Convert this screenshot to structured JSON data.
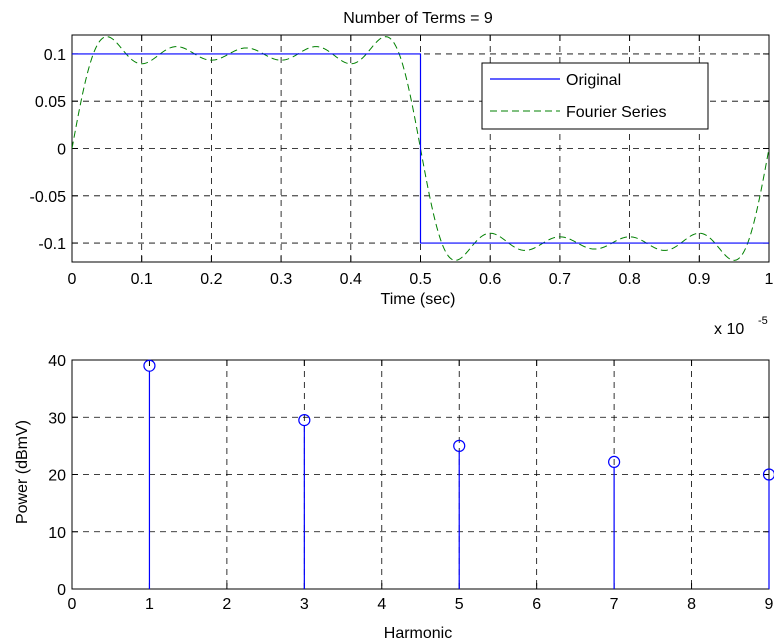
{
  "chart_data": [
    {
      "type": "line",
      "title": "Number of Terms = 9",
      "xlabel": "Time (sec)",
      "x_multiplier_label": "x 10",
      "x_multiplier_exponent": "-5",
      "ylabel": "",
      "xlim": [
        0,
        1
      ],
      "ylim": [
        -0.12,
        0.12
      ],
      "grid": true,
      "legend_position": "top-right",
      "x_ticks": [
        "0",
        "0.1",
        "0.2",
        "0.3",
        "0.4",
        "0.5",
        "0.6",
        "0.7",
        "0.8",
        "0.9",
        "1"
      ],
      "y_ticks": [
        "0.1",
        "0.05",
        "0",
        "-0.05",
        "-0.1"
      ],
      "y_tick_values": [
        0.1,
        0.05,
        0,
        -0.05,
        -0.1
      ],
      "series": [
        {
          "name": "Original",
          "color": "#0000ff",
          "style": "solid",
          "x": [
            0,
            0.5,
            0.5,
            1
          ],
          "y": [
            0.1,
            0.1,
            -0.1,
            -0.1
          ]
        },
        {
          "name": "Fourier Series",
          "color": "#008000",
          "style": "dashed",
          "description_terms": 9,
          "amplitude": 0.1
        }
      ]
    },
    {
      "type": "stem",
      "xlabel": "Harmonic",
      "ylabel": "Power (dBmV)",
      "xlim": [
        0,
        9
      ],
      "ylim": [
        0,
        40
      ],
      "grid": true,
      "x_ticks": [
        "0",
        "1",
        "2",
        "3",
        "4",
        "5",
        "6",
        "7",
        "8",
        "9"
      ],
      "y_ticks": [
        "40",
        "30",
        "20",
        "10",
        "0"
      ],
      "y_tick_values": [
        40,
        30,
        20,
        10,
        0
      ],
      "series": [
        {
          "name": "",
          "color": "#0000ff",
          "x": [
            1,
            3,
            5,
            7,
            9
          ],
          "y": [
            39,
            29.5,
            25,
            22.2,
            20
          ]
        }
      ]
    }
  ]
}
